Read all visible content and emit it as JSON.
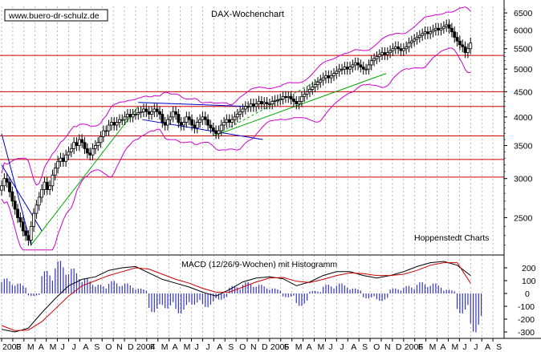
{
  "header": {
    "website": "www.buero-dr-schulz.de",
    "title": "DAX-Wochenchart",
    "source": "Hoppenstedt Charts",
    "macd_label": "MACD (12/26/9-Wochen) mit Histogramm"
  },
  "colors": {
    "candle": "#000000",
    "bollinger": "#cc00cc",
    "resistance": "#cc0000",
    "trend_blue": "#0000cc",
    "trend_green": "#00aa00",
    "macd_line": "#000000",
    "signal_line": "#cc0000",
    "histogram": "#3333cc",
    "grid": "#999999"
  },
  "chart_data": [
    {
      "type": "line",
      "name": "price-panel",
      "title": "DAX-Wochenchart",
      "y_scale": "log",
      "ylim": [
        2100,
        6700
      ],
      "y_ticks": [
        2500,
        3000,
        3500,
        4000,
        4500,
        5000,
        5500,
        6000,
        6500
      ],
      "x_range": [
        2003.0,
        2006.75
      ],
      "x_tick_labels": [
        "2003",
        "F",
        "M",
        "A",
        "M",
        "J",
        "J",
        "A",
        "S",
        "O",
        "N",
        "D",
        "2004",
        "F",
        "M",
        "A",
        "M",
        "J",
        "J",
        "A",
        "S",
        "O",
        "N",
        "D",
        "2005",
        "F",
        "M",
        "A",
        "M",
        "J",
        "J",
        "A",
        "S",
        "O",
        "N",
        "D",
        "2006",
        "F",
        "M",
        "A",
        "M",
        "J",
        "J",
        "A",
        "S"
      ],
      "grid": true,
      "horizontal_lines": [
        5330,
        4500,
        4200,
        3660,
        3280,
        3020
      ],
      "candles_close": [
        [
          2003.0,
          2900
        ],
        [
          2003.02,
          3000
        ],
        [
          2003.04,
          2950
        ],
        [
          2003.06,
          2820
        ],
        [
          2003.08,
          2700
        ],
        [
          2003.1,
          2600
        ],
        [
          2003.12,
          2500
        ],
        [
          2003.14,
          2450
        ],
        [
          2003.16,
          2350
        ],
        [
          2003.18,
          2300
        ],
        [
          2003.2,
          2250
        ],
        [
          2003.22,
          2400
        ],
        [
          2003.24,
          2550
        ],
        [
          2003.26,
          2650
        ],
        [
          2003.28,
          2750
        ],
        [
          2003.3,
          2850
        ],
        [
          2003.32,
          2950
        ],
        [
          2003.34,
          2850
        ],
        [
          2003.36,
          2900
        ],
        [
          2003.38,
          3050
        ],
        [
          2003.4,
          3150
        ],
        [
          2003.42,
          3250
        ],
        [
          2003.44,
          3300
        ],
        [
          2003.46,
          3250
        ],
        [
          2003.48,
          3350
        ],
        [
          2003.5,
          3400
        ],
        [
          2003.52,
          3450
        ],
        [
          2003.54,
          3550
        ],
        [
          2003.56,
          3500
        ],
        [
          2003.58,
          3600
        ],
        [
          2003.6,
          3550
        ],
        [
          2003.62,
          3450
        ],
        [
          2003.64,
          3380
        ],
        [
          2003.66,
          3350
        ],
        [
          2003.68,
          3450
        ],
        [
          2003.7,
          3500
        ],
        [
          2003.72,
          3550
        ],
        [
          2003.74,
          3650
        ],
        [
          2003.76,
          3750
        ],
        [
          2003.78,
          3750
        ],
        [
          2003.8,
          3850
        ],
        [
          2003.82,
          3900
        ],
        [
          2003.84,
          3850
        ],
        [
          2003.86,
          3900
        ],
        [
          2003.88,
          3950
        ],
        [
          2003.9,
          3950
        ],
        [
          2003.92,
          4000
        ],
        [
          2003.94,
          4050
        ],
        [
          2003.96,
          4000
        ],
        [
          2003.98,
          4050
        ],
        [
          2004.0,
          4050
        ],
        [
          2004.02,
          4080
        ],
        [
          2004.04,
          4100
        ],
        [
          2004.06,
          4150
        ],
        [
          2004.08,
          4100
        ],
        [
          2004.1,
          4050
        ],
        [
          2004.12,
          4100
        ],
        [
          2004.14,
          4150
        ],
        [
          2004.16,
          4100
        ],
        [
          2004.18,
          4050
        ],
        [
          2004.2,
          3900
        ],
        [
          2004.22,
          3850
        ],
        [
          2004.24,
          3950
        ],
        [
          2004.26,
          4000
        ],
        [
          2004.28,
          4100
        ],
        [
          2004.3,
          4050
        ],
        [
          2004.32,
          3900
        ],
        [
          2004.34,
          3850
        ],
        [
          2004.36,
          3900
        ],
        [
          2004.38,
          4000
        ],
        [
          2004.4,
          3950
        ],
        [
          2004.42,
          3850
        ],
        [
          2004.44,
          3800
        ],
        [
          2004.46,
          3900
        ],
        [
          2004.48,
          3950
        ],
        [
          2004.5,
          4000
        ],
        [
          2004.52,
          3950
        ],
        [
          2004.54,
          3850
        ],
        [
          2004.56,
          3800
        ],
        [
          2004.58,
          3750
        ],
        [
          2004.6,
          3700
        ],
        [
          2004.62,
          3750
        ],
        [
          2004.64,
          3850
        ],
        [
          2004.66,
          3900
        ],
        [
          2004.68,
          3950
        ],
        [
          2004.7,
          3900
        ],
        [
          2004.72,
          3950
        ],
        [
          2004.74,
          4000
        ],
        [
          2004.76,
          4050
        ],
        [
          2004.78,
          4100
        ],
        [
          2004.8,
          4150
        ],
        [
          2004.82,
          4200
        ],
        [
          2004.84,
          4200
        ],
        [
          2004.86,
          4250
        ],
        [
          2004.88,
          4200
        ],
        [
          2004.9,
          4250
        ],
        [
          2004.92,
          4300
        ],
        [
          2004.94,
          4250
        ],
        [
          2004.96,
          4280
        ],
        [
          2004.98,
          4250
        ],
        [
          2005.0,
          4250
        ],
        [
          2005.02,
          4300
        ],
        [
          2005.04,
          4320
        ],
        [
          2005.06,
          4330
        ],
        [
          2005.08,
          4350
        ],
        [
          2005.1,
          4400
        ],
        [
          2005.12,
          4380
        ],
        [
          2005.14,
          4400
        ],
        [
          2005.16,
          4350
        ],
        [
          2005.18,
          4300
        ],
        [
          2005.2,
          4250
        ],
        [
          2005.22,
          4300
        ],
        [
          2005.24,
          4400
        ],
        [
          2005.26,
          4450
        ],
        [
          2005.28,
          4500
        ],
        [
          2005.3,
          4550
        ],
        [
          2005.32,
          4600
        ],
        [
          2005.34,
          4650
        ],
        [
          2005.36,
          4700
        ],
        [
          2005.38,
          4750
        ],
        [
          2005.4,
          4800
        ],
        [
          2005.42,
          4850
        ],
        [
          2005.44,
          4800
        ],
        [
          2005.46,
          4850
        ],
        [
          2005.48,
          4900
        ],
        [
          2005.5,
          4950
        ],
        [
          2005.52,
          5000
        ],
        [
          2005.54,
          5000
        ],
        [
          2005.56,
          5050
        ],
        [
          2005.58,
          5000
        ],
        [
          2005.6,
          5050
        ],
        [
          2005.62,
          5100
        ],
        [
          2005.64,
          5150
        ],
        [
          2005.66,
          5100
        ],
        [
          2005.68,
          5050
        ],
        [
          2005.7,
          5000
        ],
        [
          2005.72,
          5000
        ],
        [
          2005.74,
          5100
        ],
        [
          2005.76,
          5200
        ],
        [
          2005.78,
          5250
        ],
        [
          2005.8,
          5300
        ],
        [
          2005.82,
          5350
        ],
        [
          2005.84,
          5400
        ],
        [
          2005.86,
          5350
        ],
        [
          2005.88,
          5400
        ],
        [
          2005.9,
          5450
        ],
        [
          2005.92,
          5500
        ],
        [
          2005.94,
          5550
        ],
        [
          2005.96,
          5500
        ],
        [
          2005.98,
          5450
        ],
        [
          2006.0,
          5500
        ],
        [
          2006.02,
          5550
        ],
        [
          2006.04,
          5650
        ],
        [
          2006.06,
          5700
        ],
        [
          2006.08,
          5750
        ],
        [
          2006.1,
          5800
        ],
        [
          2006.12,
          5850
        ],
        [
          2006.14,
          5900
        ],
        [
          2006.16,
          5950
        ],
        [
          2006.18,
          5900
        ],
        [
          2006.2,
          5950
        ],
        [
          2006.22,
          6000
        ],
        [
          2006.24,
          6050
        ],
        [
          2006.26,
          6000
        ],
        [
          2006.28,
          6050
        ],
        [
          2006.3,
          6100
        ],
        [
          2006.32,
          6150
        ],
        [
          2006.34,
          6050
        ],
        [
          2006.36,
          5950
        ],
        [
          2006.38,
          5800
        ],
        [
          2006.4,
          5700
        ],
        [
          2006.42,
          5600
        ],
        [
          2006.44,
          5550
        ],
        [
          2006.46,
          5400
        ],
        [
          2006.48,
          5500
        ],
        [
          2006.5,
          5650
        ]
      ]
    },
    {
      "type": "line",
      "name": "macd-panel",
      "title": "MACD (12/26/9-Wochen) mit Histogramm",
      "ylim": [
        -350,
        300
      ],
      "y_ticks": [
        -300,
        -200,
        -100,
        0,
        100,
        200
      ],
      "x_range": [
        2003.0,
        2006.75
      ],
      "series": [
        {
          "name": "MACD",
          "x": [
            2003.0,
            2003.1,
            2003.2,
            2003.3,
            2003.4,
            2003.5,
            2003.6,
            2003.7,
            2003.8,
            2003.9,
            2004.0,
            2004.1,
            2004.2,
            2004.3,
            2004.4,
            2004.5,
            2004.6,
            2004.7,
            2004.8,
            2004.9,
            2005.0,
            2005.1,
            2005.2,
            2005.3,
            2005.4,
            2005.5,
            2005.6,
            2005.7,
            2005.8,
            2005.9,
            2006.0,
            2006.1,
            2006.2,
            2006.3,
            2006.4,
            2006.5
          ],
          "values": [
            -280,
            -300,
            -270,
            -150,
            -40,
            60,
            110,
            130,
            180,
            200,
            210,
            160,
            110,
            80,
            50,
            10,
            -20,
            30,
            90,
            120,
            130,
            115,
            60,
            90,
            140,
            170,
            170,
            140,
            120,
            140,
            170,
            210,
            240,
            250,
            220,
            140
          ]
        },
        {
          "name": "Signal",
          "x": [
            2003.0,
            2003.1,
            2003.2,
            2003.3,
            2003.4,
            2003.5,
            2003.6,
            2003.7,
            2003.8,
            2003.9,
            2004.0,
            2004.1,
            2004.2,
            2004.3,
            2004.4,
            2004.5,
            2004.6,
            2004.7,
            2004.8,
            2004.9,
            2005.0,
            2005.1,
            2005.2,
            2005.3,
            2005.4,
            2005.5,
            2005.6,
            2005.7,
            2005.8,
            2005.9,
            2006.0,
            2006.1,
            2006.2,
            2006.3,
            2006.4,
            2006.5
          ],
          "values": [
            -250,
            -290,
            -285,
            -220,
            -120,
            -20,
            60,
            100,
            140,
            170,
            200,
            190,
            150,
            110,
            80,
            40,
            10,
            10,
            50,
            90,
            120,
            125,
            95,
            85,
            110,
            140,
            160,
            155,
            140,
            140,
            150,
            180,
            220,
            240,
            240,
            80
          ]
        }
      ],
      "histogram_x": [
        2003.0,
        2003.1,
        2003.2,
        2003.3,
        2003.4,
        2003.5,
        2003.6,
        2003.7,
        2003.8,
        2003.9,
        2004.0,
        2004.1,
        2004.2,
        2004.3,
        2004.4,
        2004.5,
        2004.6,
        2004.7,
        2004.8,
        2004.9,
        2005.0,
        2005.1,
        2005.2,
        2005.3,
        2005.4,
        2005.5,
        2005.6,
        2005.7,
        2005.8,
        2005.9,
        2006.0,
        2006.1,
        2006.2,
        2006.3,
        2006.4,
        2006.5
      ],
      "histogram": [
        120,
        80,
        -20,
        180,
        260,
        200,
        120,
        70,
        100,
        80,
        40,
        -150,
        -120,
        -160,
        -90,
        -110,
        -50,
        60,
        90,
        70,
        40,
        -30,
        -100,
        20,
        70,
        80,
        40,
        -40,
        -60,
        40,
        60,
        90,
        80,
        30,
        -160,
        -310
      ]
    }
  ]
}
